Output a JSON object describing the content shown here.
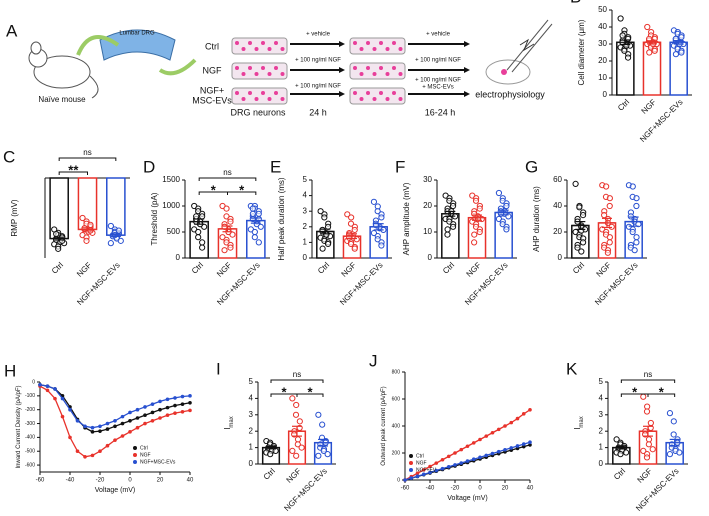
{
  "schematic": {
    "panel": "A",
    "mouse": "Naïve mouse",
    "drg": "Lumbar DRG",
    "groups": [
      [
        "Ctrl"
      ],
      [
        "NGF"
      ],
      [
        "NGF+",
        "MSC-EVs"
      ]
    ],
    "treatments1": [
      "+ vehicle",
      "+ 100 ng/ml NGF",
      "+ 100 ng/ml NGF"
    ],
    "time1": "24 h",
    "treatments2": [
      [
        "+ vehicle"
      ],
      [
        "+ 100 ng/ml NGF"
      ],
      [
        "+ 100 ng/ml NGF",
        "+ MSC-EVs"
      ]
    ],
    "time2": "16-24 h",
    "neurons": "DRG neurons",
    "ephys": "electrophysiology"
  },
  "chart_data": [
    {
      "type": "bar",
      "panel": "B",
      "ylabel": "Cell diameter (μm)",
      "categories": [
        "Ctrl",
        "NGF",
        "NGF+MSC-EVs"
      ],
      "colors": [
        "#111111",
        "#e8322b",
        "#2850d0"
      ],
      "values": [
        31,
        31,
        31
      ],
      "errors": [
        1.3,
        0.9,
        1.0
      ],
      "points": [
        [
          45,
          38,
          36,
          34,
          33,
          32,
          31,
          30,
          30,
          29,
          28,
          27,
          26,
          24,
          22,
          35,
          31,
          29
        ],
        [
          40,
          37,
          35,
          34,
          33,
          32,
          32,
          31,
          31,
          30,
          30,
          29,
          28,
          27,
          26,
          25,
          33,
          30
        ],
        [
          38,
          37,
          36,
          35,
          34,
          33,
          32,
          31,
          31,
          30,
          29,
          28,
          27,
          26,
          25,
          24,
          33,
          30
        ]
      ],
      "ylim": [
        0,
        50
      ],
      "yticks": [
        0,
        10,
        20,
        30,
        40,
        50
      ],
      "brackets": []
    },
    {
      "type": "bar",
      "panel": "C",
      "ylabel": "RMP (mV)",
      "categories": [
        "Ctrl",
        "NGF",
        "NGF+MSC-EVs"
      ],
      "colors": [
        "#111111",
        "#e8322b",
        "#2850d0"
      ],
      "values": [
        -53,
        -45,
        -50
      ],
      "errors": [
        1.2,
        1.3,
        1.1
      ],
      "points": [
        [
          -45,
          -48,
          -50,
          -51,
          -52,
          -53,
          -54,
          -55,
          -56,
          -57,
          -58,
          -60,
          -62,
          -52,
          -55,
          -49,
          -54
        ],
        [
          -35,
          -38,
          -40,
          -42,
          -43,
          -44,
          -45,
          -46,
          -47,
          -48,
          -50,
          -52,
          -55,
          -41,
          -46,
          -44
        ],
        [
          -42,
          -45,
          -47,
          -48,
          -49,
          -50,
          -51,
          -52,
          -53,
          -55,
          -57,
          -48,
          -50,
          -46
        ]
      ],
      "ylim": [
        -70,
        0
      ],
      "brackets": [
        {
          "pair": [
            0,
            1
          ],
          "label": "**"
        },
        {
          "pair": [
            0,
            2
          ],
          "label": "ns"
        }
      ]
    },
    {
      "type": "bar",
      "panel": "D",
      "ylabel": "Threshold (pA)",
      "categories": [
        "Ctrl",
        "NGF",
        "NGF+MSC-EVs"
      ],
      "colors": [
        "#111111",
        "#e8322b",
        "#2850d0"
      ],
      "values": [
        700,
        560,
        720
      ],
      "errors": [
        50,
        55,
        50
      ],
      "points": [
        [
          1000,
          950,
          900,
          850,
          800,
          750,
          700,
          700,
          650,
          600,
          550,
          500,
          400,
          300,
          200,
          750,
          800,
          700,
          650
        ],
        [
          1000,
          950,
          800,
          750,
          700,
          650,
          600,
          550,
          500,
          450,
          400,
          350,
          300,
          250,
          200,
          150,
          600,
          500
        ],
        [
          1000,
          1000,
          950,
          900,
          850,
          800,
          750,
          700,
          650,
          600,
          550,
          500,
          400,
          300,
          750,
          850,
          950
        ]
      ],
      "ylim": [
        0,
        1500
      ],
      "yticks": [
        0,
        500,
        1000,
        1500
      ],
      "brackets": [
        {
          "pair": [
            0,
            1
          ],
          "label": "*"
        },
        {
          "pair": [
            1,
            2
          ],
          "label": "*"
        },
        {
          "pair": [
            0,
            2
          ],
          "label": "ns"
        }
      ]
    },
    {
      "type": "bar",
      "panel": "E",
      "ylabel": "Half peak duration (ms)",
      "categories": [
        "Ctrl",
        "NGF",
        "NGF+MSC-EVs"
      ],
      "colors": [
        "#111111",
        "#e8322b",
        "#2850d0"
      ],
      "values": [
        1.7,
        1.4,
        2.0
      ],
      "errors": [
        0.15,
        0.15,
        0.2
      ],
      "points": [
        [
          3.0,
          2.8,
          2.6,
          2.2,
          2.0,
          1.8,
          1.7,
          1.6,
          1.5,
          1.4,
          1.3,
          1.2,
          1.1,
          1.0,
          0.9,
          0.6,
          1.8,
          1.5
        ],
        [
          2.8,
          2.6,
          2.2,
          2.0,
          1.8,
          1.6,
          1.5,
          1.4,
          1.3,
          1.2,
          1.1,
          1.0,
          0.9,
          0.7,
          0.6,
          1.5,
          1.3
        ],
        [
          3.6,
          3.3,
          3.0,
          2.8,
          2.6,
          2.4,
          2.2,
          2.0,
          1.9,
          1.8,
          1.6,
          1.4,
          1.2,
          1.0,
          0.8,
          2.1
        ]
      ],
      "ylim": [
        0,
        5
      ],
      "yticks": [
        0,
        1,
        2,
        3,
        4,
        5
      ],
      "brackets": []
    },
    {
      "type": "bar",
      "panel": "F",
      "ylabel": "AHP amplitude (mV)",
      "categories": [
        "Ctrl",
        "NGF",
        "NGF+MSC-EVs"
      ],
      "colors": [
        "#111111",
        "#e8322b",
        "#2850d0"
      ],
      "values": [
        17,
        15.5,
        17.5
      ],
      "errors": [
        0.9,
        1.0,
        0.9
      ],
      "points": [
        [
          24,
          23,
          22,
          21,
          20,
          19,
          18,
          17,
          17,
          16,
          15,
          15,
          14,
          13,
          12,
          11,
          9,
          18
        ],
        [
          24,
          23,
          22,
          20,
          19,
          18,
          17,
          16,
          16,
          15,
          14,
          13,
          12,
          11,
          10,
          9,
          6,
          15
        ],
        [
          25,
          23,
          22,
          21,
          20,
          19,
          18,
          18,
          17,
          16,
          15,
          14,
          13,
          12,
          11,
          17
        ]
      ],
      "ylim": [
        0,
        30
      ],
      "yticks": [
        0,
        10,
        20,
        30
      ],
      "brackets": []
    },
    {
      "type": "bar",
      "panel": "G",
      "ylabel": "AHP duration (ms)",
      "categories": [
        "Ctrl",
        "NGF",
        "NGF+MSC-EVs"
      ],
      "colors": [
        "#111111",
        "#e8322b",
        "#2850d0"
      ],
      "values": [
        25,
        27,
        28
      ],
      "errors": [
        3,
        3.5,
        3.5
      ],
      "points": [
        [
          57,
          40,
          39,
          35,
          33,
          30,
          28,
          25,
          24,
          22,
          20,
          18,
          16,
          15,
          12,
          10,
          8,
          5,
          21
        ],
        [
          56,
          55,
          47,
          46,
          40,
          36,
          33,
          30,
          27,
          24,
          22,
          20,
          18,
          16,
          12,
          10,
          8,
          6,
          4
        ],
        [
          56,
          55,
          47,
          46,
          40,
          35,
          32,
          30,
          28,
          26,
          24,
          22,
          20,
          16,
          12,
          10,
          8,
          6
        ]
      ],
      "ylim": [
        0,
        60
      ],
      "yticks": [
        0,
        20,
        40,
        60
      ],
      "brackets": []
    },
    {
      "type": "line",
      "panel": "H",
      "xlabel": "Voltage (mV)",
      "ylabel": "Inward Current Density (pA/pF)",
      "legend": "lower right",
      "x": [
        -60,
        -55,
        -50,
        -45,
        -40,
        -35,
        -30,
        -25,
        -20,
        -15,
        -10,
        -5,
        0,
        5,
        10,
        15,
        20,
        25,
        30,
        35,
        40
      ],
      "series": [
        {
          "name": "Ctrl",
          "color": "#111111",
          "values": [
            -20,
            -30,
            -50,
            -100,
            -180,
            -270,
            -330,
            -360,
            -355,
            -340,
            -320,
            -300,
            -280,
            -260,
            -240,
            -220,
            -200,
            -185,
            -170,
            -160,
            -150
          ]
        },
        {
          "name": "NGF",
          "color": "#e8322b",
          "values": [
            -30,
            -60,
            -120,
            -250,
            -400,
            -500,
            -540,
            -530,
            -500,
            -460,
            -420,
            -390,
            -360,
            -330,
            -300,
            -280,
            -260,
            -240,
            -225,
            -215,
            -205
          ]
        },
        {
          "name": "NGF+MSC-EVs",
          "color": "#2850d0",
          "values": [
            -20,
            -30,
            -50,
            -120,
            -200,
            -280,
            -320,
            -330,
            -320,
            -300,
            -280,
            -250,
            -220,
            -200,
            -180,
            -160,
            -140,
            -125,
            -115,
            -105,
            -100
          ]
        }
      ],
      "xlim": [
        -60,
        40
      ],
      "xticks": [
        -60,
        -40,
        -20,
        0,
        20,
        40
      ],
      "ylim": [
        -650,
        0
      ],
      "yticks": [
        0,
        -100,
        -200,
        -300,
        -400,
        -500,
        -600
      ]
    },
    {
      "type": "bar",
      "panel": "I",
      "ylabel": "I",
      "ylabel_sub": "max",
      "categories": [
        "Ctrl",
        "NGF",
        "NGF+MSC-EVs"
      ],
      "colors": [
        "#111111",
        "#e8322b",
        "#2850d0"
      ],
      "values": [
        1.0,
        2.0,
        1.3
      ],
      "errors": [
        0.07,
        0.3,
        0.2
      ],
      "points": [
        [
          1.4,
          1.3,
          1.2,
          1.1,
          1.0,
          1.0,
          0.9,
          0.9,
          0.8,
          0.8,
          0.7,
          0.6
        ],
        [
          4.0,
          3.6,
          3.0,
          2.6,
          2.2,
          2.0,
          1.8,
          1.5,
          1.2,
          1.0,
          0.8,
          0.5
        ],
        [
          3.0,
          2.4,
          1.6,
          1.4,
          1.3,
          1.2,
          1.0,
          0.9,
          0.8,
          0.6,
          0.5
        ]
      ],
      "ylim": [
        0,
        5
      ],
      "yticks": [
        0,
        1,
        2,
        3,
        4,
        5
      ],
      "brackets": [
        {
          "pair": [
            0,
            1
          ],
          "label": "*"
        },
        {
          "pair": [
            1,
            2
          ],
          "label": "*"
        },
        {
          "pair": [
            0,
            2
          ],
          "label": "ns"
        }
      ]
    },
    {
      "type": "line",
      "panel": "J",
      "xlabel": "Voltage (mV)",
      "ylabel": "Outward peak current (pA/pF)",
      "legend": "lower left",
      "x": [
        -60,
        -55,
        -50,
        -45,
        -40,
        -35,
        -30,
        -25,
        -20,
        -15,
        -10,
        -5,
        0,
        5,
        10,
        15,
        20,
        25,
        30,
        35,
        40
      ],
      "series": [
        {
          "name": "Ctrl",
          "color": "#111111",
          "values": [
            0,
            13,
            26,
            39,
            52,
            65,
            78,
            91,
            104,
            117,
            130,
            143,
            156,
            169,
            182,
            195,
            208,
            221,
            234,
            247,
            260
          ]
        },
        {
          "name": "NGF",
          "color": "#e8322b",
          "values": [
            0,
            25,
            50,
            75,
            100,
            125,
            150,
            175,
            200,
            225,
            250,
            275,
            300,
            325,
            350,
            375,
            400,
            425,
            455,
            490,
            520
          ]
        },
        {
          "name": "NGF+EV",
          "color": "#2850d0",
          "values": [
            0,
            14,
            28,
            42,
            56,
            70,
            84,
            98,
            112,
            126,
            140,
            154,
            168,
            182,
            196,
            210,
            224,
            238,
            252,
            266,
            280
          ]
        }
      ],
      "xlim": [
        -60,
        40
      ],
      "xticks": [
        -60,
        -40,
        -20,
        0,
        20,
        40
      ],
      "ylim": [
        0,
        800
      ],
      "yticks": [
        0,
        200,
        400,
        600,
        800
      ]
    },
    {
      "type": "bar",
      "panel": "K",
      "ylabel": "I",
      "ylabel_sub": "max",
      "categories": [
        "Ctrl",
        "NGF",
        "NGF+MSC-EVs"
      ],
      "colors": [
        "#111111",
        "#e8322b",
        "#2850d0"
      ],
      "values": [
        1.0,
        2.0,
        1.3
      ],
      "errors": [
        0.08,
        0.3,
        0.2
      ],
      "points": [
        [
          1.5,
          1.3,
          1.2,
          1.1,
          1.0,
          1.0,
          0.9,
          0.9,
          0.8,
          0.7,
          0.7,
          0.6
        ],
        [
          4.1,
          3.5,
          3.2,
          2.5,
          2.2,
          2.0,
          1.8,
          1.5,
          1.2,
          0.9,
          0.8,
          0.6,
          0.4
        ],
        [
          3.1,
          2.6,
          1.8,
          1.5,
          1.3,
          1.2,
          1.0,
          0.9,
          0.8,
          0.7,
          0.6
        ]
      ],
      "ylim": [
        0,
        5
      ],
      "yticks": [
        0,
        1,
        2,
        3,
        4,
        5
      ],
      "brackets": [
        {
          "pair": [
            0,
            1
          ],
          "label": "*"
        },
        {
          "pair": [
            1,
            2
          ],
          "label": "*"
        },
        {
          "pair": [
            0,
            2
          ],
          "label": "ns"
        }
      ]
    }
  ]
}
